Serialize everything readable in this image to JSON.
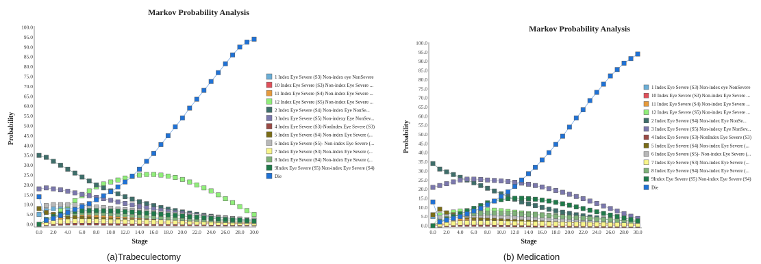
{
  "chart_data": [
    {
      "type": "line",
      "title": "Markov Probability Analysis",
      "xlabel": "Stage",
      "ylabel": "Probability",
      "caption": "(a)Trabeculectomy",
      "ylim": [
        0,
        100
      ],
      "xlim": [
        0,
        30
      ],
      "yticks": [
        "0.0",
        "5.0",
        "10.0",
        "15.0",
        "20.0",
        "25.0",
        "30.0",
        "35.0",
        "40.0",
        "45.0",
        "50.0",
        "55.0",
        "60.0",
        "65.0",
        "70.0",
        "75.0",
        "80.0",
        "85.0",
        "90.0",
        "95.0",
        "100.0"
      ],
      "xticks": [
        "0.0",
        "2.0",
        "4.0",
        "6.0",
        "8.0",
        "10.0",
        "12.0",
        "14.0",
        "16.0",
        "18.0",
        "20.0",
        "22.0",
        "24.0",
        "26.0",
        "28.0",
        "30.0"
      ],
      "legend_position": "right",
      "grid": false,
      "series": [
        {
          "name": "1 Index Eye Severe (S3) Non-index eye NonSevere",
          "color": "#6baed6",
          "values": [
            5,
            7,
            8,
            8,
            8,
            8,
            7.5,
            7,
            6.5,
            6,
            5.5,
            5,
            4.5,
            4,
            3.7,
            3.4,
            3.1,
            2.8,
            2.6,
            2.4,
            2.2,
            2,
            1.8,
            1.7,
            1.6,
            1.5,
            1.4,
            1.3,
            1.2,
            1.1,
            1
          ]
        },
        {
          "name": "10 Index Eye Severe (S3) Non-index Eye Severe ...",
          "color": "#e0505a",
          "values": [
            0,
            0.5,
            1,
            1.3,
            1.5,
            1.6,
            1.6,
            1.6,
            1.5,
            1.5,
            1.4,
            1.3,
            1.2,
            1.2,
            1.1,
            1,
            1,
            0.9,
            0.9,
            0.8,
            0.8,
            0.7,
            0.7,
            0.6,
            0.6,
            0.6,
            0.5,
            0.5,
            0.5,
            0.4,
            0.4
          ]
        },
        {
          "name": "11 Index Eye Severe (S4) Non-index Eye Severe ...",
          "color": "#e69a3c",
          "values": [
            0,
            1,
            2,
            2.8,
            3.3,
            3.6,
            3.8,
            3.8,
            3.8,
            3.7,
            3.6,
            3.4,
            3.2,
            3,
            2.9,
            2.7,
            2.5,
            2.4,
            2.2,
            2.1,
            2,
            1.8,
            1.7,
            1.6,
            1.5,
            1.4,
            1.3,
            1.2,
            1.1,
            1,
            1
          ]
        },
        {
          "name": "12 Index Eye Severe (S5) Non-index Eye Severe ...",
          "color": "#90ee7a",
          "values": [
            0,
            2,
            4.5,
            7,
            9.5,
            12,
            14.5,
            17,
            19,
            20.5,
            21.5,
            22.5,
            23.5,
            24.3,
            25,
            25.3,
            25.3,
            25,
            24.5,
            23.8,
            22.8,
            21.5,
            20,
            18.5,
            17,
            15,
            13,
            11,
            9,
            7,
            5
          ]
        },
        {
          "name": "2 Index Eye Severe (S4) Non-index Eye NonSe...",
          "color": "#3e6e6a",
          "values": [
            35,
            34,
            32,
            30,
            28,
            26,
            24,
            22,
            20,
            18.5,
            17,
            15.5,
            14,
            12.8,
            11.5,
            10.5,
            9.5,
            8.5,
            7.7,
            7,
            6.3,
            5.7,
            5.1,
            4.6,
            4.1,
            3.7,
            3.3,
            3,
            2.7,
            2.4,
            2.2
          ]
        },
        {
          "name": "3 Index Eye Severe (S5) Non-indexy Eye NonSev...",
          "color": "#7b78ad",
          "values": [
            18,
            18.5,
            18,
            17.5,
            16.8,
            16,
            15.2,
            14.5,
            13.7,
            13,
            12.2,
            11.4,
            10.6,
            9.8,
            9.1,
            8.4,
            7.7,
            7.1,
            6.5,
            6,
            5.5,
            5,
            4.6,
            4.2,
            3.8,
            3.5,
            3.2,
            2.9,
            2.6,
            2.4,
            2.2
          ]
        },
        {
          "name": "4 Index Eye Severe (S3)-NonIndex Eye Severe (S3)",
          "color": "#9a4a45",
          "values": [
            0,
            0.3,
            0.5,
            0.6,
            0.7,
            0.7,
            0.7,
            0.7,
            0.7,
            0.6,
            0.6,
            0.6,
            0.5,
            0.5,
            0.5,
            0.4,
            0.4,
            0.4,
            0.4,
            0.3,
            0.3,
            0.3,
            0.3,
            0.3,
            0.2,
            0.2,
            0.2,
            0.2,
            0.2,
            0.2,
            0.2
          ]
        },
        {
          "name": "5 Index Eye Severe (S4) Non-index Eye Severe (...",
          "color": "#7a6c17",
          "values": [
            8,
            6,
            5,
            4.3,
            3.8,
            3.4,
            3,
            2.8,
            2.6,
            2.4,
            2.2,
            2,
            1.9,
            1.8,
            1.7,
            1.6,
            1.5,
            1.4,
            1.3,
            1.2,
            1.1,
            1.1,
            1,
            1,
            0.9,
            0.9,
            0.8,
            0.8,
            0.7,
            0.7,
            0.7
          ]
        },
        {
          "name": "6 Index Eye Severe (S5)- Non-index Eye Severe (...",
          "color": "#b8b8b8",
          "values": [
            0,
            9.5,
            10,
            10,
            10,
            9.8,
            9.5,
            9.2,
            8.8,
            8.5,
            8.2,
            7.8,
            7.5,
            7.1,
            6.8,
            6.5,
            6.1,
            5.8,
            5.4,
            5.1,
            4.8,
            4.5,
            4.2,
            3.9,
            3.6,
            3.4,
            3.1,
            2.9,
            2.7,
            2.5,
            2.3
          ]
        },
        {
          "name": "7 Index Eye Severe (S3) Non-index Eye Severe (...",
          "color": "#f8f58a",
          "values": [
            0,
            0.6,
            1.1,
            1.4,
            1.6,
            1.7,
            1.7,
            1.7,
            1.7,
            1.6,
            1.5,
            1.5,
            1.4,
            1.3,
            1.3,
            1.2,
            1.1,
            1.1,
            1,
            1,
            0.9,
            0.9,
            0.8,
            0.8,
            0.7,
            0.7,
            0.7,
            0.6,
            0.6,
            0.6,
            0.5
          ]
        },
        {
          "name": "8 Index Eye Severe (S4) Non-index Eye Severe (...",
          "color": "#7fb27a",
          "values": [
            0,
            2,
            3.5,
            4.5,
            5.2,
            5.6,
            5.8,
            5.8,
            5.7,
            5.5,
            5.3,
            5,
            4.8,
            4.5,
            4.3,
            4,
            3.8,
            3.5,
            3.3,
            3.1,
            2.9,
            2.7,
            2.5,
            2.3,
            2.2,
            2,
            1.9,
            1.8,
            1.6,
            1.5,
            1.4
          ]
        },
        {
          "name": "9Index Eye Severe (S5) Non-index Eye Severe (S4)",
          "color": "#1f7a4a",
          "values": [
            0,
            2.5,
            4,
            5.2,
            6,
            6.5,
            6.8,
            7,
            7,
            6.9,
            6.8,
            6.6,
            6.4,
            6.2,
            6,
            5.7,
            5.4,
            5.1,
            4.8,
            4.5,
            4.2,
            3.9,
            3.6,
            3.3,
            3,
            2.8,
            2.5,
            2.3,
            2.1,
            1.9,
            1.7
          ]
        },
        {
          "name": "Die",
          "color": "#1f72d6",
          "values": [
            14,
            2,
            3,
            4.5,
            6,
            7.5,
            9,
            10.5,
            12.5,
            14.5,
            16.5,
            19,
            21.5,
            24.5,
            28,
            32,
            36,
            40.5,
            45,
            49.5,
            54,
            59,
            63.5,
            68,
            72.5,
            77,
            81.5,
            86,
            90,
            92.5,
            94
          ]
        }
      ]
    },
    {
      "type": "line",
      "title": "Markov Probability Analysis",
      "xlabel": "Stage",
      "ylabel": "Probability",
      "caption": "(b) Medication",
      "ylim": [
        0,
        100
      ],
      "xlim": [
        0,
        30
      ],
      "yticks": [
        "0.0",
        "5.0",
        "10.0",
        "15.0",
        "20.0",
        "25.0",
        "30.0",
        "35.0",
        "40.0",
        "45.0",
        "50.0",
        "55.0",
        "60.0",
        "65.0",
        "70.0",
        "75.0",
        "80.0",
        "85.0",
        "90.0",
        "95.0",
        "100.0"
      ],
      "xticks": [
        "0.0",
        "2.0",
        "4.0",
        "6.0",
        "8.0",
        "10.0",
        "12.0",
        "14.0",
        "16.0",
        "18.0",
        "20.0",
        "22.0",
        "24.0",
        "26.0",
        "28.0",
        "30.0"
      ],
      "legend_position": "right",
      "grid": false,
      "series": [
        {
          "name": "1 Index Eye Severe (S3) Non-index eye NonSevere",
          "color": "#6baed6",
          "values": [
            5,
            6,
            6.5,
            6.8,
            7,
            7,
            6.8,
            6.6,
            6.3,
            6,
            5.7,
            5.4,
            5.1,
            4.8,
            4.5,
            4.2,
            3.9,
            3.6,
            3.4,
            3.1,
            2.9,
            2.7,
            2.5,
            2.3,
            2.1,
            1.9,
            1.8,
            1.6,
            1.5,
            1.4,
            1.3
          ]
        },
        {
          "name": "10 Index Eye Severe (S3) Non-index Eye Severe ...",
          "color": "#e0505a",
          "values": [
            0,
            0.5,
            0.9,
            1.2,
            1.4,
            1.5,
            1.5,
            1.5,
            1.5,
            1.4,
            1.4,
            1.3,
            1.2,
            1.2,
            1.1,
            1.1,
            1,
            1,
            0.9,
            0.9,
            0.8,
            0.8,
            0.7,
            0.7,
            0.6,
            0.6,
            0.6,
            0.5,
            0.5,
            0.5,
            0.4
          ]
        },
        {
          "name": "11 Index Eye Severe (S4) Non-index Eye Severe ...",
          "color": "#e69a3c",
          "values": [
            0,
            1,
            1.8,
            2.4,
            2.8,
            3,
            3.1,
            3.1,
            3.1,
            3,
            2.9,
            2.8,
            2.7,
            2.6,
            2.5,
            2.3,
            2.2,
            2.1,
            2,
            1.9,
            1.8,
            1.7,
            1.6,
            1.5,
            1.4,
            1.3,
            1.2,
            1.1,
            1.1,
            1,
            0.9
          ]
        },
        {
          "name": "12 Index Eye Severe (S5) Non-index Eye Severe ...",
          "color": "#90ee7a",
          "values": [
            0,
            6,
            7,
            7.5,
            8,
            8.3,
            8.5,
            8.7,
            8.7,
            8.5,
            8.2,
            7.8,
            7.4,
            7,
            6.6,
            6.3,
            6,
            5.7,
            5.4,
            5.1,
            4.8,
            4.6,
            4.3,
            4,
            3.8,
            3.5,
            3.3,
            3.1,
            2.9,
            2.7,
            2.5
          ]
        },
        {
          "name": "2 Index Eye Severe (S4) Non-index Eye NonSe...",
          "color": "#3e6e6a",
          "values": [
            34,
            31,
            29.5,
            28,
            26.5,
            25,
            23.5,
            22,
            20.5,
            19,
            17.5,
            16,
            14.5,
            13,
            12,
            11,
            10,
            9,
            8.2,
            7.4,
            6.7,
            6,
            5.4,
            4.8,
            4.3,
            3.8,
            3.4,
            3,
            2.7,
            2.4,
            2.1
          ]
        },
        {
          "name": "3 Index Eye Severe (S5) Non-indexy Eye NonSev...",
          "color": "#7b78ad",
          "values": [
            21,
            22,
            23,
            24,
            25,
            25.5,
            25.5,
            25.3,
            25,
            24.8,
            24.5,
            24.2,
            23.8,
            23.3,
            22.7,
            22,
            21.2,
            20.3,
            19.3,
            18.3,
            17.2,
            16,
            14.8,
            13.5,
            12.2,
            10.8,
            9.4,
            8,
            6.6,
            5.2,
            4
          ]
        },
        {
          "name": "4 Index Eye Severe (S3)-NonIndex Eye Severe (S3)",
          "color": "#9a4a45",
          "values": [
            0,
            0.3,
            0.5,
            0.6,
            0.7,
            0.7,
            0.7,
            0.7,
            0.7,
            0.6,
            0.6,
            0.6,
            0.5,
            0.5,
            0.5,
            0.4,
            0.4,
            0.4,
            0.4,
            0.3,
            0.3,
            0.3,
            0.3,
            0.3,
            0.2,
            0.2,
            0.2,
            0.2,
            0.2,
            0.2,
            0.2
          ]
        },
        {
          "name": "5 Index Eye Severe (S4) Non-index Eye Severe (...",
          "color": "#7a6c17",
          "values": [
            6,
            9,
            7,
            6,
            5.3,
            4.8,
            4.4,
            4,
            3.7,
            3.4,
            3.2,
            3,
            2.8,
            2.6,
            2.4,
            2.3,
            2.1,
            2,
            1.9,
            1.8,
            1.7,
            1.6,
            1.5,
            1.4,
            1.3,
            1.2,
            1.1,
            1.1,
            1,
            0.9,
            0.9
          ]
        },
        {
          "name": "6 Index Eye Severe (S5)- Non-index Eye Severe (...",
          "color": "#b8b8b8",
          "values": [
            0,
            4.5,
            5,
            5.3,
            5.5,
            5.6,
            5.6,
            5.5,
            5.4,
            5.3,
            5.1,
            4.9,
            4.7,
            4.5,
            4.3,
            4.1,
            3.9,
            3.7,
            3.5,
            3.3,
            3.1,
            2.9,
            2.7,
            2.5,
            2.3,
            2.2,
            2,
            1.9,
            1.7,
            1.6,
            1.5
          ]
        },
        {
          "name": "7 Index Eye Severe (S3) Non-index Eye Severe (...",
          "color": "#f8f58a",
          "values": [
            0,
            0.6,
            1,
            1.3,
            1.5,
            1.6,
            1.6,
            1.6,
            1.6,
            1.5,
            1.5,
            1.4,
            1.3,
            1.3,
            1.2,
            1.1,
            1.1,
            1,
            1,
            0.9,
            0.9,
            0.8,
            0.8,
            0.7,
            0.7,
            0.7,
            0.6,
            0.6,
            0.6,
            0.5,
            0.5
          ]
        },
        {
          "name": "8 Index Eye Severe (S4) Non-index Eye Severe (...",
          "color": "#7fb27a",
          "values": [
            0,
            2.5,
            4,
            5,
            5.8,
            6.3,
            6.6,
            6.8,
            6.9,
            6.9,
            6.8,
            6.7,
            6.5,
            6.3,
            6.1,
            5.9,
            5.6,
            5.4,
            5.1,
            4.9,
            4.6,
            4.4,
            4.1,
            3.9,
            3.6,
            3.4,
            3.2,
            3,
            2.8,
            2.6,
            2.4
          ]
        },
        {
          "name": "9Index Eye Severe (S5) Non-index Eye Severe (S4)",
          "color": "#1f7a4a",
          "values": [
            0,
            2,
            3.5,
            5,
            6.5,
            8,
            9.5,
            11,
            12.5,
            13.5,
            14.3,
            14.8,
            15,
            15,
            14.8,
            14.5,
            14,
            13.5,
            12.8,
            12,
            11.2,
            10.3,
            9.4,
            8.5,
            7.6,
            6.7,
            5.8,
            5,
            4.2,
            3.4,
            2.7
          ]
        },
        {
          "name": "Die",
          "color": "#1f72d6",
          "values": [
            13,
            2,
            3,
            4,
            5,
            6.5,
            8,
            9.5,
            11.5,
            13.5,
            16,
            18.5,
            21.5,
            25,
            28.5,
            32,
            36,
            40,
            44.5,
            49,
            54,
            59,
            63.5,
            68.5,
            73,
            77.5,
            82,
            85.5,
            89,
            91.5,
            94
          ]
        }
      ]
    }
  ]
}
